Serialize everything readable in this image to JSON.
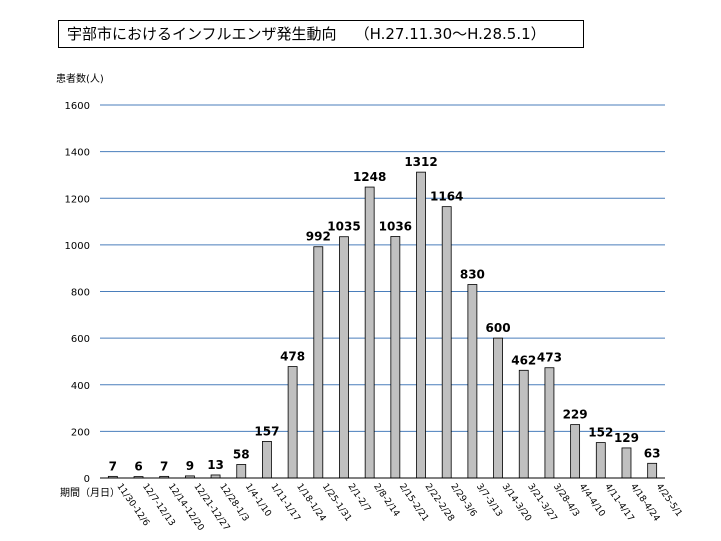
{
  "chart_data": {
    "type": "bar",
    "title": "宇部市におけるインフルエンザ発生動向",
    "period": "（H.27.11.30～H.28.5.1）",
    "ylabel": "患者数(人)",
    "xlabel": "期間（月日）",
    "ylim": [
      0,
      1600
    ],
    "yticks": [
      0,
      200,
      400,
      600,
      800,
      1000,
      1200,
      1400,
      1600
    ],
    "grid": true,
    "categories": [
      "11/30-12/6",
      "12/7-12/13",
      "12/14-12/20",
      "12/21-12/27",
      "12/28-1/3",
      "1/4-1/10",
      "1/11-1/17",
      "1/18-1/24",
      "1/25-1/31",
      "2/1-2/7",
      "2/8-2/14",
      "2/15-2/21",
      "2/22-2/28",
      "2/29-3/6",
      "3/7-3/13",
      "3/14-3/20",
      "3/21-3/27",
      "3/28-4/3",
      "4/4-4/10",
      "4/11-4/17",
      "4/18-4/24",
      "4/25-5/1"
    ],
    "values": [
      7,
      6,
      7,
      9,
      13,
      58,
      157,
      478,
      992,
      1035,
      1248,
      1036,
      1312,
      1164,
      830,
      600,
      462,
      473,
      229,
      152,
      129,
      63
    ],
    "colors": {
      "bar": "#c0c0c0",
      "bar_stroke": "#000000",
      "grid": "#4a7ebb",
      "axis": "#000000"
    }
  }
}
